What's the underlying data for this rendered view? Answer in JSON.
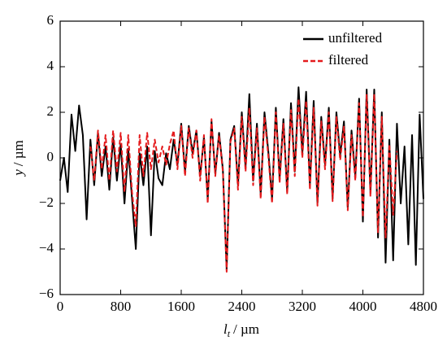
{
  "chart_data": {
    "type": "line",
    "xlabel": {
      "symbol": "l",
      "subscript": "t",
      "unit": "/ µm"
    },
    "ylabel": {
      "symbol": "y",
      "unit": "/ µm"
    },
    "xlim": [
      0,
      4800
    ],
    "xticks": [
      0,
      800,
      1600,
      2400,
      3200,
      4000,
      4800
    ],
    "ylim": [
      -6,
      6
    ],
    "yticks": [
      {
        "value": -6,
        "label": "−6"
      },
      {
        "value": -4,
        "label": "−4"
      },
      {
        "value": -2,
        "label": "−2"
      },
      0,
      2,
      4,
      6
    ],
    "legend": "upper right",
    "series": [
      {
        "name": "unfiltered",
        "color": "#000000",
        "dash": "solid",
        "x": [
          0,
          50,
          100,
          150,
          200,
          250,
          300,
          350,
          400,
          450,
          500,
          550,
          600,
          650,
          700,
          750,
          800,
          850,
          900,
          950,
          1000,
          1050,
          1100,
          1150,
          1200,
          1250,
          1300,
          1350,
          1400,
          1450,
          1500,
          1550,
          1600,
          1650,
          1700,
          1750,
          1800,
          1850,
          1900,
          1950,
          2000,
          2050,
          2100,
          2150,
          2200,
          2250,
          2300,
          2350,
          2400,
          2450,
          2500,
          2550,
          2600,
          2650,
          2700,
          2750,
          2800,
          2850,
          2900,
          2950,
          3000,
          3050,
          3100,
          3150,
          3200,
          3250,
          3300,
          3350,
          3400,
          3450,
          3500,
          3550,
          3600,
          3650,
          3700,
          3750,
          3800,
          3850,
          3900,
          3950,
          4000,
          4050,
          4100,
          4150,
          4200,
          4250,
          4300,
          4350,
          4400,
          4450,
          4500,
          4550,
          4600,
          4650,
          4700,
          4750,
          4800
        ],
        "values": [
          -1.0,
          0.0,
          -1.5,
          1.9,
          0.3,
          2.3,
          1.0,
          -2.7,
          0.8,
          -1.2,
          1.1,
          -0.8,
          0.5,
          -1.4,
          0.9,
          -1.0,
          0.6,
          -2.0,
          0.4,
          -1.8,
          -4.0,
          0.2,
          -1.2,
          0.5,
          -3.4,
          0.3,
          -0.9,
          -1.2,
          0.2,
          -0.5,
          0.8,
          -0.3,
          1.5,
          -0.6,
          1.4,
          0.2,
          1.2,
          -0.8,
          0.9,
          -1.8,
          1.6,
          -0.7,
          1.1,
          -0.5,
          -4.9,
          0.8,
          1.4,
          -1.2,
          2.0,
          -0.4,
          2.8,
          -1.0,
          1.5,
          -1.6,
          2.0,
          0.3,
          -1.8,
          2.2,
          -0.9,
          1.7,
          -1.5,
          2.4,
          -0.6,
          3.1,
          0.2,
          2.9,
          -1.2,
          2.5,
          -2.0,
          1.8,
          -0.3,
          2.2,
          -1.8,
          2.0,
          0.1,
          1.6,
          -2.2,
          1.2,
          -0.8,
          2.6,
          -2.8,
          3.0,
          -1.5,
          3.0,
          -3.5,
          2.0,
          -4.6,
          0.8,
          -4.5,
          1.5,
          -2.0,
          0.5,
          -3.8,
          1.0,
          -4.7,
          1.9,
          -1.8
        ]
      },
      {
        "name": "filtered",
        "color": "#e41a1c",
        "dash": "dashed",
        "x": [
          400,
          450,
          500,
          550,
          600,
          650,
          700,
          750,
          800,
          850,
          900,
          950,
          1000,
          1050,
          1100,
          1150,
          1200,
          1250,
          1300,
          1350,
          1400,
          1450,
          1500,
          1550,
          1600,
          1650,
          1700,
          1750,
          1800,
          1850,
          1900,
          1950,
          2000,
          2050,
          2100,
          2150,
          2200,
          2250,
          2300,
          2350,
          2400,
          2450,
          2500,
          2550,
          2600,
          2650,
          2700,
          2750,
          2800,
          2850,
          2900,
          2950,
          3000,
          3050,
          3100,
          3150,
          3200,
          3250,
          3300,
          3350,
          3400,
          3450,
          3500,
          3550,
          3600,
          3650,
          3700,
          3750,
          3800,
          3850,
          3900,
          3950,
          4000,
          4050,
          4100,
          4150,
          4200,
          4250,
          4300,
          4350,
          4400,
          4450
        ],
        "values": [
          0.5,
          -1.0,
          1.2,
          -0.5,
          1.0,
          -1.0,
          1.2,
          -0.6,
          1.1,
          -1.5,
          1.0,
          -1.5,
          -3.0,
          1.0,
          -0.8,
          1.1,
          -0.5,
          0.8,
          -0.2,
          0.5,
          -0.3,
          0.6,
          1.2,
          -0.5,
          1.4,
          -0.8,
          1.3,
          0.0,
          1.2,
          -1.0,
          1.0,
          -2.0,
          1.7,
          -0.8,
          1.0,
          -0.6,
          -5.0,
          0.7,
          1.3,
          -1.4,
          1.8,
          -0.6,
          2.2,
          -1.2,
          1.3,
          -1.8,
          1.8,
          0.1,
          -2.0,
          2.0,
          -1.1,
          1.5,
          -1.6,
          2.1,
          -0.8,
          2.6,
          0.0,
          2.5,
          -1.4,
          2.2,
          -2.1,
          1.6,
          -0.5,
          2.0,
          -1.9,
          1.8,
          -0.1,
          1.4,
          -2.3,
          1.0,
          -1.0,
          2.4,
          -2.6,
          2.8,
          -1.7,
          2.8,
          -3.3,
          1.8,
          -3.5,
          0.6,
          -2.5,
          0.3
        ]
      }
    ]
  }
}
